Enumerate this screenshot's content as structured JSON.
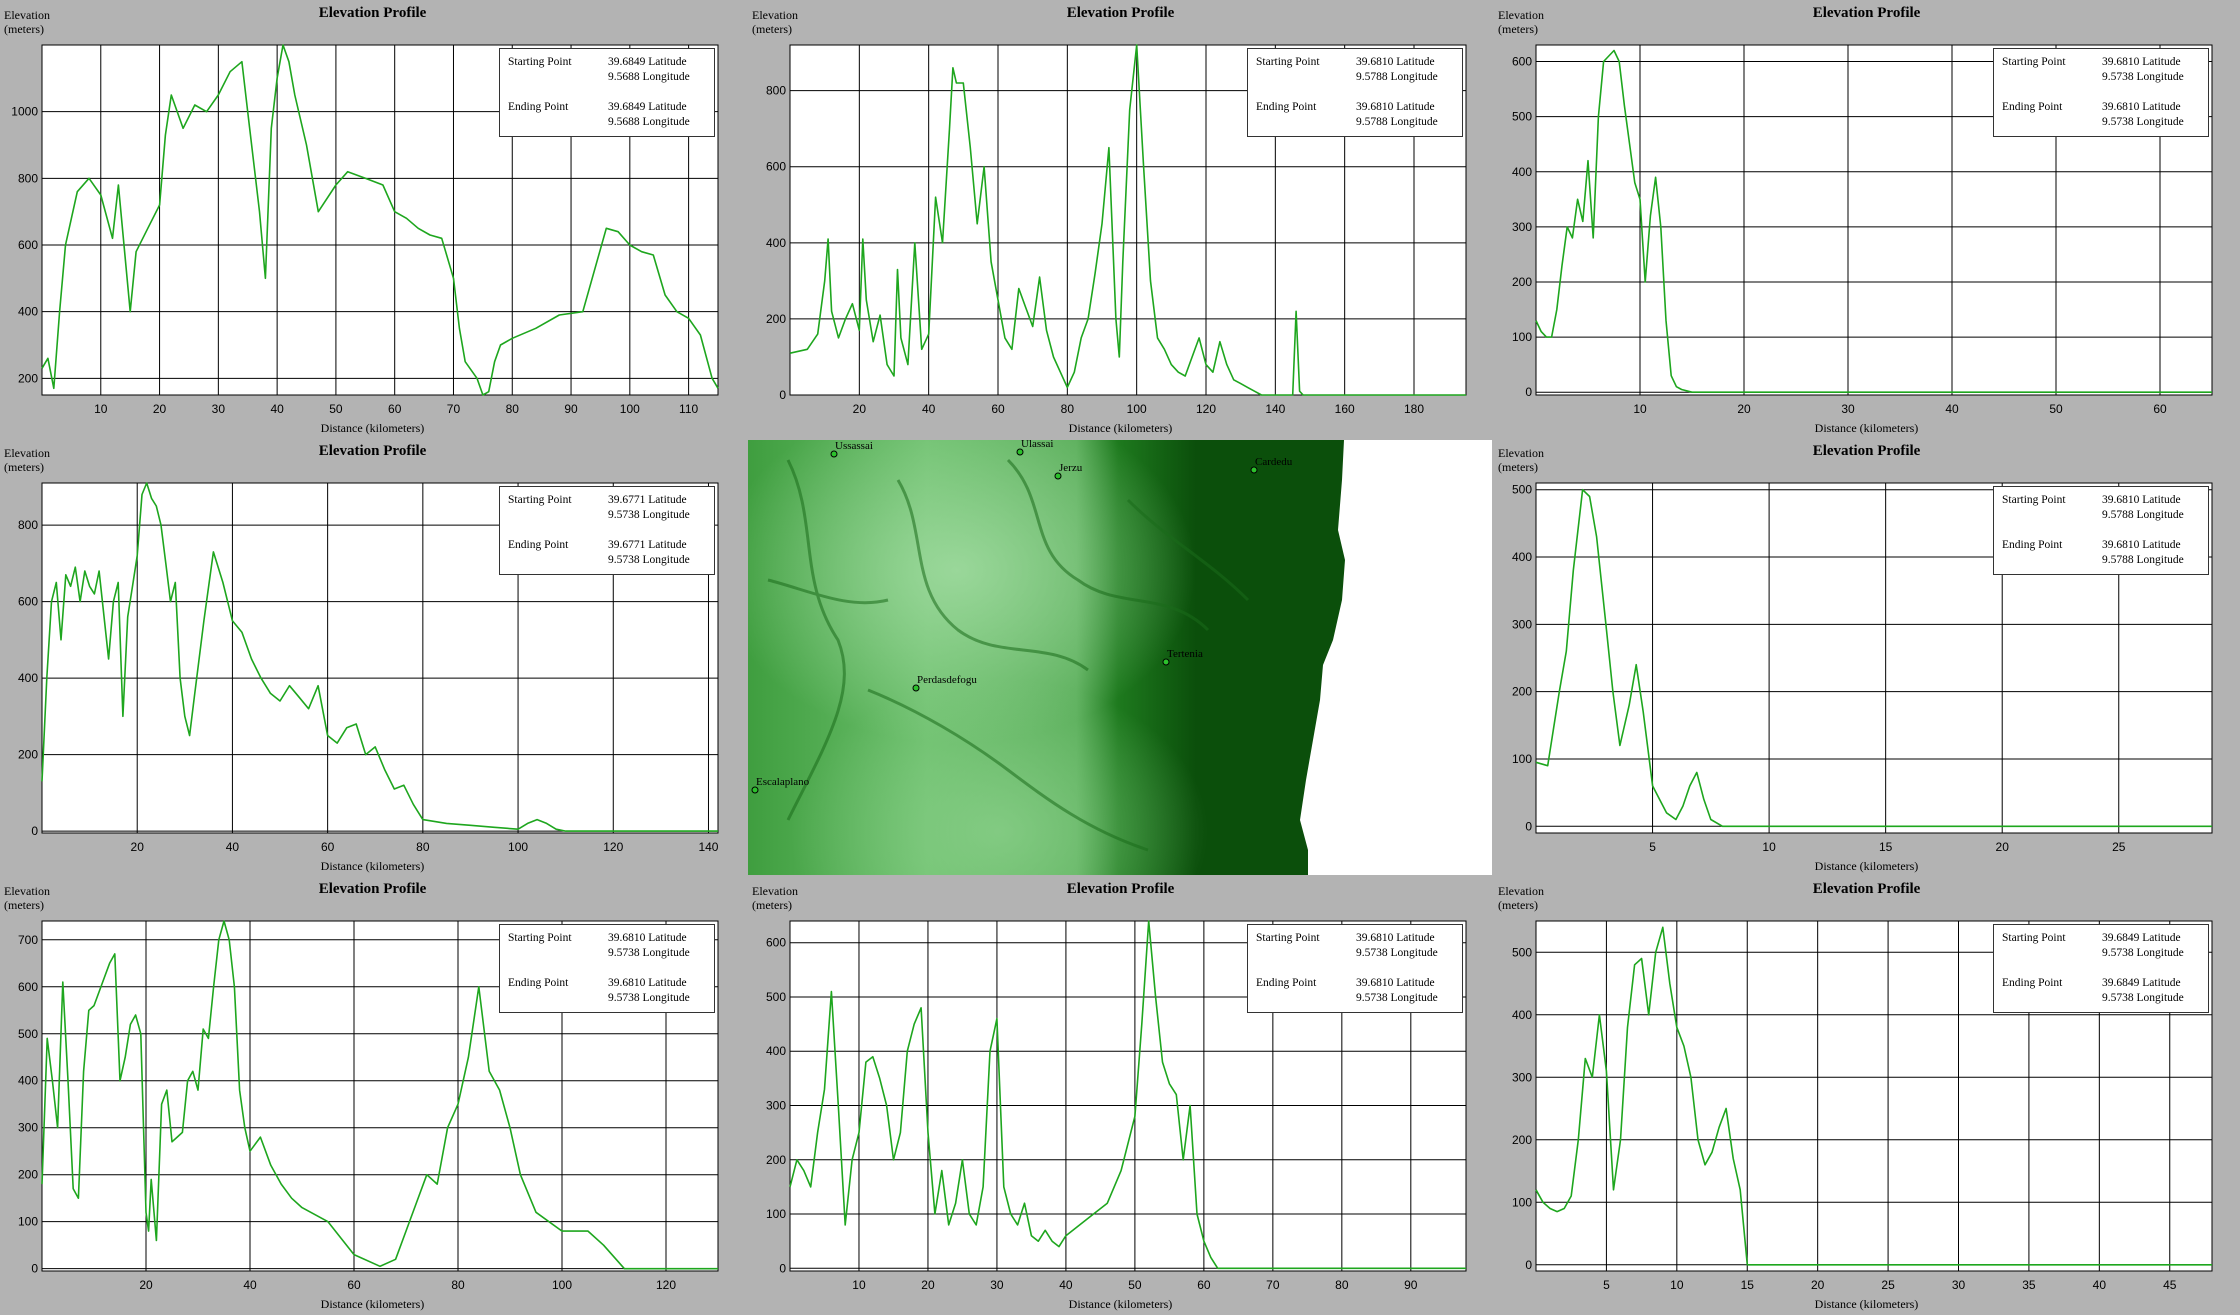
{
  "common": {
    "title": "Elevation Profile",
    "ylabel_line1": "Elevation",
    "ylabel_line2": "(meters)",
    "xlabel": "Distance (kilometers)",
    "start_label": "Starting Point",
    "end_label": "Ending Point",
    "line_color": "#1ea61e",
    "map_colors": [
      "#a6dea6",
      "#5fb85f",
      "#1e7a1e",
      "#0b4f0b"
    ]
  },
  "towns": [
    "Ussassai",
    "Ulassai",
    "Jerzu",
    "Cardedu",
    "Tertenia",
    "Perdasdefogu",
    "Escalaplano"
  ],
  "chart_data": [
    {
      "type": "line",
      "xlim": [
        0,
        115
      ],
      "ylim": [
        150,
        1200
      ],
      "xticks": [
        10,
        20,
        30,
        40,
        50,
        60,
        70,
        80,
        90,
        100,
        110
      ],
      "yticks": [
        200,
        400,
        600,
        800,
        1000
      ],
      "start": [
        "39.6849 Latitude",
        "9.5688 Longitude"
      ],
      "end": [
        "39.6849 Latitude",
        "9.5688 Longitude"
      ],
      "x": [
        0,
        1,
        2,
        3,
        4,
        5,
        6,
        8,
        10,
        12,
        13,
        15,
        16,
        18,
        20,
        21,
        22,
        24,
        26,
        28,
        30,
        32,
        34,
        35,
        36,
        37,
        38,
        39,
        40,
        41,
        42,
        43,
        45,
        47,
        50,
        52,
        55,
        58,
        60,
        62,
        64,
        66,
        68,
        70,
        71,
        72,
        74,
        75,
        76,
        77,
        78,
        80,
        84,
        88,
        92,
        96,
        98,
        100,
        102,
        104,
        106,
        108,
        110,
        112,
        114,
        115
      ],
      "y": [
        230,
        260,
        170,
        400,
        600,
        680,
        760,
        800,
        750,
        620,
        780,
        400,
        580,
        650,
        720,
        930,
        1050,
        950,
        1020,
        1000,
        1050,
        1120,
        1150,
        1000,
        850,
        700,
        500,
        950,
        1100,
        1200,
        1150,
        1050,
        900,
        700,
        780,
        820,
        800,
        780,
        700,
        680,
        650,
        630,
        620,
        500,
        350,
        250,
        200,
        150,
        160,
        250,
        300,
        320,
        350,
        390,
        400,
        650,
        640,
        600,
        580,
        570,
        450,
        400,
        380,
        330,
        200,
        170
      ]
    },
    {
      "type": "line",
      "xlim": [
        0,
        195
      ],
      "ylim": [
        0,
        920
      ],
      "xticks": [
        20,
        40,
        60,
        80,
        100,
        120,
        140,
        160,
        180
      ],
      "yticks": [
        0,
        200,
        400,
        600,
        800
      ],
      "start": [
        "39.6810 Latitude",
        "9.5788 Longitude"
      ],
      "end": [
        "39.6810 Latitude",
        "9.5788 Longitude"
      ],
      "x": [
        0,
        5,
        8,
        10,
        11,
        12,
        14,
        16,
        18,
        20,
        21,
        22,
        24,
        26,
        28,
        30,
        31,
        32,
        34,
        36,
        38,
        40,
        42,
        44,
        46,
        47,
        48,
        50,
        52,
        54,
        56,
        58,
        60,
        62,
        64,
        66,
        68,
        70,
        72,
        74,
        76,
        78,
        80,
        82,
        84,
        86,
        88,
        90,
        92,
        94,
        95,
        96,
        98,
        100,
        102,
        104,
        106,
        108,
        110,
        112,
        114,
        116,
        118,
        120,
        122,
        124,
        126,
        128,
        130,
        132,
        134,
        136,
        140,
        145,
        146,
        147,
        148,
        150,
        195
      ],
      "y": [
        110,
        120,
        160,
        300,
        410,
        220,
        150,
        200,
        240,
        170,
        410,
        250,
        140,
        210,
        80,
        50,
        330,
        150,
        80,
        400,
        120,
        160,
        520,
        400,
        700,
        860,
        820,
        820,
        650,
        450,
        600,
        350,
        250,
        150,
        120,
        280,
        230,
        180,
        310,
        170,
        100,
        60,
        20,
        60,
        150,
        200,
        320,
        450,
        650,
        200,
        100,
        350,
        750,
        920,
        600,
        300,
        150,
        120,
        80,
        60,
        50,
        100,
        150,
        80,
        60,
        140,
        80,
        40,
        30,
        20,
        10,
        0,
        0,
        0,
        220,
        10,
        0,
        0,
        0
      ]
    },
    {
      "type": "line",
      "xlim": [
        0,
        65
      ],
      "ylim": [
        -5,
        630
      ],
      "xticks": [
        10,
        20,
        30,
        40,
        50,
        60
      ],
      "yticks": [
        0,
        100,
        200,
        300,
        400,
        500,
        600
      ],
      "start": [
        "39.6810 Latitude",
        "9.5738 Longitude"
      ],
      "end": [
        "39.6810 Latitude",
        "9.5738 Longitude"
      ],
      "x": [
        0,
        0.5,
        1,
        1.5,
        2,
        2.5,
        3,
        3.5,
        4,
        4.5,
        5,
        5.5,
        6,
        6.5,
        7,
        7.5,
        8,
        8.5,
        9,
        9.5,
        10,
        10.5,
        11,
        11.5,
        12,
        12.5,
        13,
        13.5,
        14,
        15,
        65
      ],
      "y": [
        130,
        110,
        100,
        100,
        150,
        230,
        300,
        280,
        350,
        310,
        420,
        280,
        500,
        600,
        610,
        620,
        600,
        520,
        450,
        380,
        350,
        200,
        320,
        390,
        300,
        130,
        30,
        10,
        5,
        0,
        0
      ]
    },
    {
      "type": "line",
      "xlim": [
        0,
        142
      ],
      "ylim": [
        -5,
        910
      ],
      "xticks": [
        20,
        40,
        60,
        80,
        100,
        120,
        140
      ],
      "yticks": [
        0,
        200,
        400,
        600,
        800
      ],
      "start": [
        "39.6771 Latitude",
        "9.5738 Longitude"
      ],
      "end": [
        "39.6771 Latitude",
        "9.5738 Longitude"
      ],
      "x": [
        0,
        1,
        2,
        3,
        4,
        5,
        6,
        7,
        8,
        9,
        10,
        11,
        12,
        14,
        15,
        16,
        17,
        18,
        19,
        20,
        21,
        22,
        23,
        24,
        25,
        26,
        27,
        28,
        29,
        30,
        31,
        32,
        34,
        36,
        38,
        40,
        42,
        44,
        46,
        48,
        50,
        52,
        54,
        56,
        58,
        60,
        62,
        64,
        66,
        68,
        70,
        72,
        74,
        76,
        78,
        80,
        85,
        90,
        95,
        100,
        102,
        104,
        106,
        108,
        110,
        142
      ],
      "y": [
        130,
        400,
        600,
        650,
        500,
        670,
        640,
        690,
        600,
        680,
        640,
        620,
        680,
        450,
        600,
        650,
        300,
        560,
        640,
        720,
        880,
        910,
        870,
        850,
        800,
        700,
        600,
        650,
        400,
        300,
        250,
        350,
        550,
        730,
        650,
        550,
        520,
        450,
        400,
        360,
        340,
        380,
        350,
        320,
        380,
        250,
        230,
        270,
        280,
        200,
        220,
        160,
        110,
        120,
        70,
        30,
        20,
        15,
        10,
        5,
        20,
        30,
        20,
        5,
        0,
        0
      ]
    },
    {
      "type": "line",
      "xlim": [
        0,
        29
      ],
      "ylim": [
        -10,
        510
      ],
      "xticks": [
        5,
        10,
        15,
        20,
        25
      ],
      "yticks": [
        0,
        100,
        200,
        300,
        400,
        500
      ],
      "start": [
        "39.6810 Latitude",
        "9.5788 Longitude"
      ],
      "end": [
        "39.6810 Latitude",
        "9.5788 Longitude"
      ],
      "x": [
        0,
        0.5,
        1,
        1.3,
        1.6,
        2,
        2.3,
        2.6,
        3,
        3.3,
        3.6,
        4,
        4.3,
        4.6,
        5,
        5.3,
        5.6,
        6,
        6.3,
        6.6,
        6.9,
        7.2,
        7.5,
        8,
        29
      ],
      "y": [
        95,
        90,
        200,
        260,
        380,
        500,
        490,
        430,
        300,
        200,
        120,
        180,
        240,
        170,
        60,
        40,
        20,
        10,
        30,
        60,
        80,
        40,
        10,
        0,
        0
      ]
    },
    {
      "type": "line",
      "xlim": [
        0,
        130
      ],
      "ylim": [
        -5,
        740
      ],
      "xticks": [
        20,
        40,
        60,
        80,
        100,
        120
      ],
      "yticks": [
        0,
        100,
        200,
        300,
        400,
        500,
        600,
        700
      ],
      "start": [
        "39.6810 Latitude",
        "9.5738 Longitude"
      ],
      "end": [
        "39.6810 Latitude",
        "9.5738 Longitude"
      ],
      "x": [
        0,
        1,
        2,
        3,
        4,
        5,
        6,
        7,
        8,
        9,
        10,
        11,
        12,
        13,
        14,
        15,
        16,
        17,
        18,
        19,
        20,
        20.5,
        21,
        22,
        23,
        24,
        25,
        26,
        27,
        28,
        29,
        30,
        31,
        32,
        33,
        34,
        35,
        36,
        37,
        38,
        39,
        40,
        42,
        44,
        46,
        48,
        50,
        55,
        60,
        65,
        68,
        70,
        72,
        74,
        76,
        78,
        80,
        82,
        84,
        86,
        88,
        90,
        92,
        95,
        100,
        105,
        108,
        112,
        130
      ],
      "y": [
        180,
        490,
        400,
        300,
        610,
        400,
        170,
        150,
        420,
        550,
        560,
        590,
        620,
        650,
        670,
        400,
        450,
        520,
        540,
        500,
        120,
        80,
        190,
        60,
        350,
        380,
        270,
        280,
        290,
        400,
        420,
        380,
        510,
        490,
        600,
        700,
        740,
        700,
        600,
        380,
        300,
        250,
        280,
        220,
        180,
        150,
        130,
        100,
        30,
        5,
        20,
        80,
        140,
        200,
        180,
        300,
        350,
        450,
        600,
        420,
        380,
        300,
        200,
        120,
        80,
        80,
        50,
        0,
        0
      ]
    },
    {
      "type": "line",
      "xlim": [
        0,
        98
      ],
      "ylim": [
        -5,
        640
      ],
      "xticks": [
        10,
        20,
        30,
        40,
        50,
        60,
        70,
        80,
        90
      ],
      "yticks": [
        0,
        100,
        200,
        300,
        400,
        500,
        600
      ],
      "start": [
        "39.6810 Latitude",
        "9.5738 Longitude"
      ],
      "end": [
        "39.6810 Latitude",
        "9.5738 Longitude"
      ],
      "x": [
        0,
        1,
        2,
        3,
        4,
        5,
        6,
        7,
        8,
        9,
        10,
        11,
        12,
        13,
        14,
        15,
        16,
        17,
        18,
        19,
        20,
        21,
        22,
        23,
        24,
        25,
        26,
        27,
        28,
        29,
        30,
        31,
        32,
        33,
        34,
        35,
        36,
        37,
        38,
        39,
        40,
        42,
        44,
        46,
        48,
        50,
        51,
        52,
        53,
        54,
        55,
        56,
        57,
        58,
        59,
        60,
        61,
        62,
        98
      ],
      "y": [
        150,
        200,
        180,
        150,
        250,
        330,
        510,
        300,
        80,
        200,
        250,
        380,
        390,
        350,
        300,
        200,
        250,
        400,
        450,
        480,
        250,
        100,
        180,
        80,
        120,
        200,
        100,
        80,
        150,
        400,
        460,
        150,
        100,
        80,
        120,
        60,
        50,
        70,
        50,
        40,
        60,
        80,
        100,
        120,
        180,
        280,
        450,
        640,
        500,
        380,
        340,
        320,
        200,
        300,
        100,
        50,
        20,
        0,
        0
      ]
    },
    {
      "type": "line",
      "xlim": [
        0,
        48
      ],
      "ylim": [
        -10,
        550
      ],
      "xticks": [
        5,
        10,
        15,
        20,
        25,
        30,
        35,
        40,
        45
      ],
      "yticks": [
        0,
        100,
        200,
        300,
        400,
        500
      ],
      "start": [
        "39.6849 Latitude",
        "9.5738 Longitude"
      ],
      "end": [
        "39.6849 Latitude",
        "9.5738 Longitude"
      ],
      "x": [
        0,
        0.5,
        1,
        1.5,
        2,
        2.5,
        3,
        3.5,
        4,
        4.5,
        5,
        5.5,
        6,
        6.5,
        7,
        7.5,
        8,
        8.5,
        9,
        9.5,
        10,
        10.5,
        11,
        11.5,
        12,
        12.5,
        13,
        13.5,
        14,
        14.5,
        15,
        48
      ],
      "y": [
        120,
        100,
        90,
        85,
        90,
        110,
        200,
        330,
        300,
        400,
        310,
        120,
        200,
        380,
        480,
        490,
        400,
        500,
        540,
        450,
        380,
        350,
        300,
        200,
        160,
        180,
        220,
        250,
        170,
        120,
        0,
        0
      ]
    }
  ]
}
